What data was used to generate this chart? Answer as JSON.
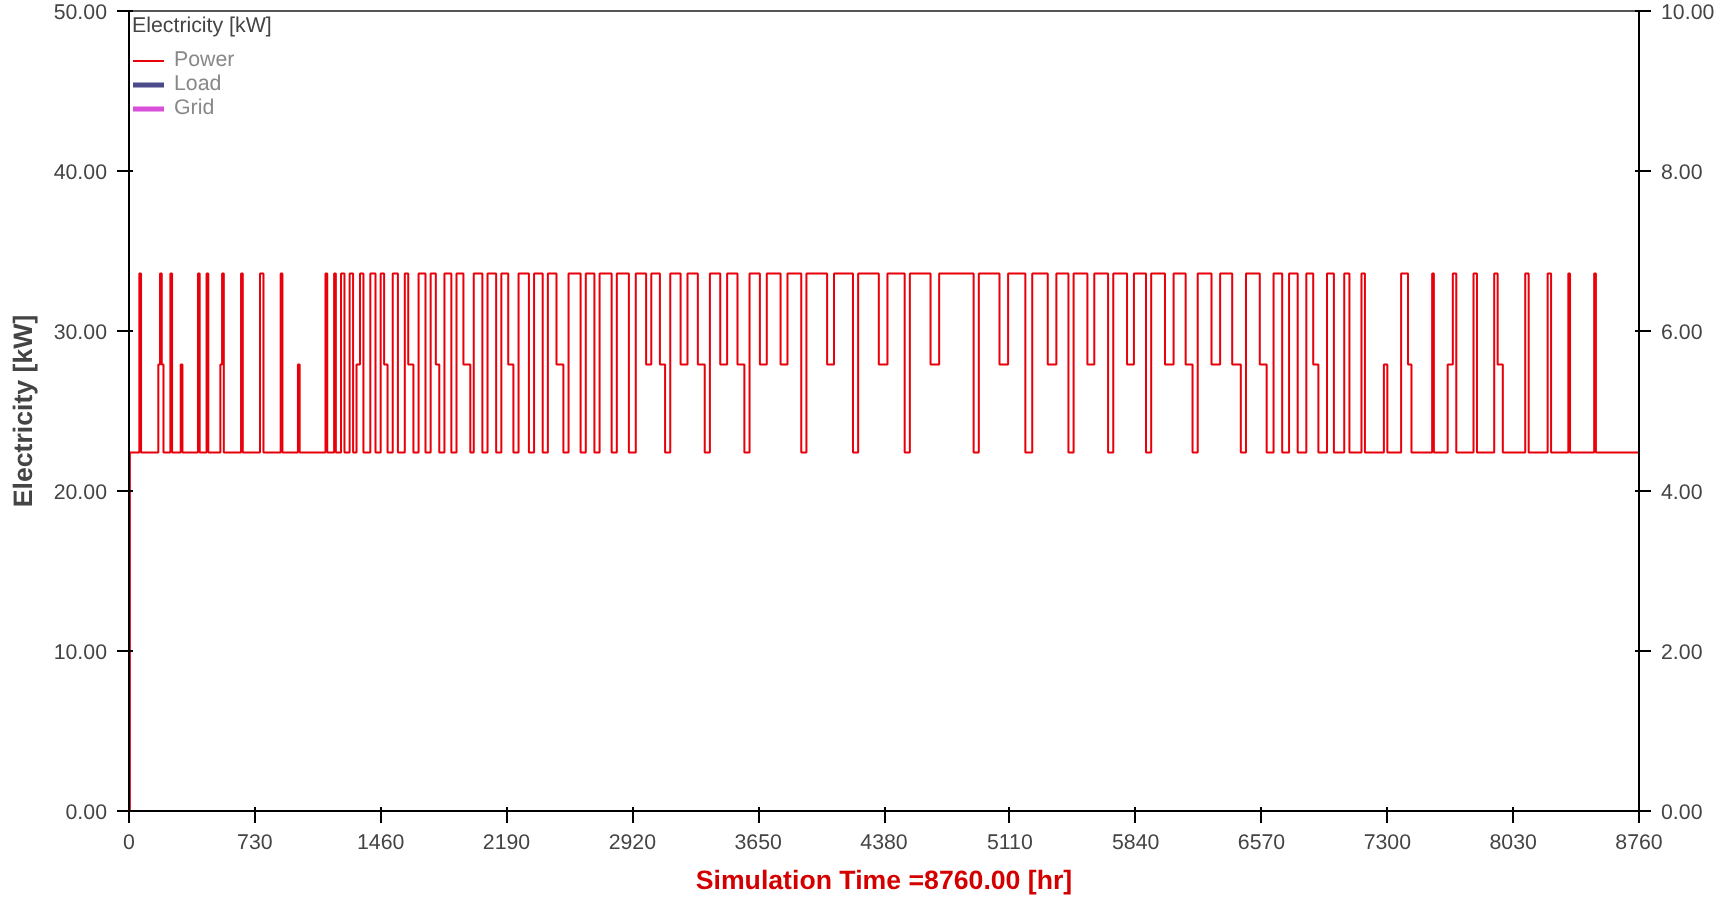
{
  "chart_data": {
    "type": "step",
    "legend_title": "Electricity [kW]",
    "xlabel": "Simulation Time =8760.00 [hr]",
    "ylabel": "Electricity [kW]",
    "legend": "top left",
    "x": [
      0,
      5,
      60,
      70,
      170,
      180,
      190,
      200,
      240,
      250,
      300,
      310,
      400,
      410,
      450,
      460,
      530,
      540,
      550,
      650,
      660,
      760,
      780,
      880,
      890,
      980,
      990,
      1140,
      1150,
      1190,
      1200,
      1230,
      1250,
      1280,
      1300,
      1320,
      1340,
      1360,
      1400,
      1430,
      1460,
      1480,
      1500,
      1530,
      1560,
      1600,
      1620,
      1650,
      1680,
      1720,
      1750,
      1780,
      1800,
      1830,
      1870,
      1900,
      1940,
      1980,
      2000,
      2050,
      2080,
      2130,
      2160,
      2200,
      2230,
      2260,
      2320,
      2350,
      2400,
      2430,
      2480,
      2520,
      2550,
      2620,
      2650,
      2700,
      2730,
      2800,
      2830,
      2900,
      2940,
      3000,
      3030,
      3080,
      3110,
      3140,
      3200,
      3240,
      3300,
      3340,
      3370,
      3430,
      3470,
      3530,
      3570,
      3600,
      3660,
      3700,
      3780,
      3820,
      3900,
      3930,
      4050,
      4090,
      4200,
      4230,
      4350,
      4400,
      4500,
      4530,
      4650,
      4700,
      4900,
      4930,
      5050,
      5100,
      5200,
      5240,
      5330,
      5380,
      5450,
      5480,
      5560,
      5600,
      5680,
      5710,
      5790,
      5830,
      5900,
      5930,
      6010,
      6060,
      6130,
      6170,
      6200,
      6280,
      6330,
      6400,
      6450,
      6480,
      6560,
      6600,
      6640,
      6690,
      6730,
      6780,
      6830,
      6870,
      6900,
      6950,
      6990,
      7050,
      7080,
      7150,
      7170,
      7280,
      7300,
      7380,
      7420,
      7440,
      7560,
      7570,
      7650,
      7680,
      7700,
      7800,
      7820,
      7920,
      7940,
      7970,
      8100,
      8120,
      8230,
      8250,
      8350,
      8360,
      8500,
      8510,
      8760
    ],
    "series": [
      {
        "name": "Power",
        "color": "#e8000b",
        "values": [
          0,
          22.4,
          33.6,
          22.4,
          27.9,
          33.6,
          27.9,
          22.4,
          33.6,
          22.4,
          27.9,
          22.4,
          33.6,
          22.4,
          33.6,
          22.4,
          27.9,
          33.6,
          22.4,
          33.6,
          22.4,
          33.6,
          22.4,
          33.6,
          22.4,
          27.9,
          22.4,
          33.6,
          22.4,
          33.6,
          22.4,
          33.6,
          22.4,
          33.6,
          22.4,
          27.9,
          33.6,
          22.4,
          33.6,
          22.4,
          33.6,
          27.9,
          22.4,
          33.6,
          22.4,
          33.6,
          27.9,
          22.4,
          33.6,
          22.4,
          33.6,
          27.9,
          22.4,
          33.6,
          22.4,
          33.6,
          27.9,
          22.4,
          33.6,
          22.4,
          33.6,
          22.4,
          33.6,
          27.9,
          22.4,
          33.6,
          22.4,
          33.6,
          22.4,
          33.6,
          27.9,
          22.4,
          33.6,
          22.4,
          33.6,
          22.4,
          33.6,
          22.4,
          33.6,
          22.4,
          33.6,
          27.9,
          33.6,
          27.9,
          22.4,
          33.6,
          27.9,
          33.6,
          27.9,
          22.4,
          33.6,
          27.9,
          33.6,
          27.9,
          22.4,
          33.6,
          27.9,
          33.6,
          27.9,
          33.6,
          22.4,
          33.6,
          27.9,
          33.6,
          22.4,
          33.6,
          27.9,
          33.6,
          22.4,
          33.6,
          27.9,
          33.6,
          22.4,
          33.6,
          27.9,
          33.6,
          22.4,
          33.6,
          27.9,
          33.6,
          22.4,
          33.6,
          27.9,
          33.6,
          22.4,
          33.6,
          27.9,
          33.6,
          22.4,
          33.6,
          27.9,
          33.6,
          27.9,
          22.4,
          33.6,
          27.9,
          33.6,
          27.9,
          22.4,
          33.6,
          27.9,
          22.4,
          33.6,
          22.4,
          33.6,
          22.4,
          33.6,
          27.9,
          22.4,
          33.6,
          22.4,
          33.6,
          22.4,
          33.6,
          22.4,
          27.9,
          22.4,
          33.6,
          27.9,
          22.4,
          33.6,
          22.4,
          27.9,
          33.6,
          22.4,
          33.6,
          22.4,
          33.6,
          27.9,
          22.4,
          33.6,
          22.4,
          33.6,
          22.4,
          33.6,
          22.4,
          33.6,
          22.4,
          22.4
        ]
      },
      {
        "name": "Load",
        "color": "#4b4b8c",
        "values": [
          null,
          null,
          null,
          null,
          null,
          null,
          null,
          null,
          null,
          null,
          null,
          null,
          null,
          null,
          null,
          null,
          null,
          null,
          null,
          null,
          null,
          null,
          null,
          null,
          null,
          null,
          null,
          null,
          null,
          null,
          null,
          null,
          null,
          null,
          null,
          null,
          null,
          null,
          null,
          null,
          null,
          null,
          null,
          null,
          null,
          null,
          null,
          null,
          null,
          null,
          null,
          null,
          null,
          null,
          null,
          null,
          null,
          null,
          null,
          null,
          null,
          null,
          null,
          null,
          null,
          null,
          null,
          null,
          null,
          null,
          null,
          null,
          null,
          null,
          null,
          null,
          null,
          null,
          null,
          null,
          null,
          null,
          null,
          null,
          null,
          null,
          null,
          null,
          null,
          null,
          null,
          null,
          null,
          null,
          null,
          null,
          null,
          null,
          null,
          null,
          null,
          null,
          null,
          null,
          null,
          null,
          null,
          null,
          null,
          null,
          null,
          null,
          null,
          null,
          null,
          null,
          null,
          null,
          null,
          null,
          null,
          null,
          null,
          null,
          null,
          null,
          null,
          null,
          null,
          null,
          null,
          null,
          null,
          null,
          null,
          null,
          null,
          null,
          null,
          null,
          null,
          null,
          null,
          null,
          null,
          null,
          null,
          null,
          null,
          null,
          null,
          null,
          null,
          null,
          null,
          null,
          null,
          null,
          null,
          null,
          null,
          null,
          null,
          null,
          null,
          null,
          null,
          null,
          null,
          null,
          null,
          null,
          null,
          null,
          null,
          null,
          null,
          null,
          null
        ]
      },
      {
        "name": "Grid",
        "color": "#d94fd9",
        "values": [
          null,
          null,
          null,
          null,
          null,
          null,
          null,
          null,
          null,
          null,
          null,
          null,
          null,
          null,
          null,
          null,
          null,
          null,
          null,
          null,
          null,
          null,
          null,
          null,
          null,
          null,
          null,
          null,
          null,
          null,
          null,
          null,
          null,
          null,
          null,
          null,
          null,
          null,
          null,
          null,
          null,
          null,
          null,
          null,
          null,
          null,
          null,
          null,
          null,
          null,
          null,
          null,
          null,
          null,
          null,
          null,
          null,
          null,
          null,
          null,
          null,
          null,
          null,
          null,
          null,
          null,
          null,
          null,
          null,
          null,
          null,
          null,
          null,
          null,
          null,
          null,
          null,
          null,
          null,
          null,
          null,
          null,
          null,
          null,
          null,
          null,
          null,
          null,
          null,
          null,
          null,
          null,
          null,
          null,
          null,
          null,
          null,
          null,
          null,
          null,
          null,
          null,
          null,
          null,
          null,
          null,
          null,
          null,
          null,
          null,
          null,
          null,
          null,
          null,
          null,
          null,
          null,
          null,
          null,
          null,
          null,
          null,
          null,
          null,
          null,
          null,
          null,
          null,
          null,
          null,
          null,
          null,
          null,
          null,
          null,
          null,
          null,
          null,
          null,
          null,
          null,
          null,
          null,
          null,
          null,
          null,
          null,
          null,
          null,
          null,
          null,
          null,
          null,
          null,
          null,
          null,
          null,
          null,
          null,
          null,
          null,
          null,
          null,
          null,
          null,
          null,
          null,
          null,
          null,
          null,
          null,
          null,
          null,
          null,
          null,
          null,
          null,
          null,
          null
        ]
      }
    ],
    "xlim": [
      0,
      8760
    ],
    "xticks": [
      0,
      730,
      1460,
      2190,
      2920,
      3650,
      4380,
      5110,
      5840,
      6570,
      7300,
      8030,
      8760
    ],
    "ylim": [
      0,
      50
    ],
    "yticks": [
      {
        "value": 0,
        "label": "0.00"
      },
      {
        "value": 10,
        "label": "10.00"
      },
      {
        "value": 20,
        "label": "20.00"
      },
      {
        "value": 30,
        "label": "30.00"
      },
      {
        "value": 40,
        "label": "40.00"
      },
      {
        "value": 50,
        "label": "50.00"
      }
    ],
    "y2lim": [
      0,
      10
    ],
    "y2ticks": [
      {
        "value": 0,
        "label": "0.00"
      },
      {
        "value": 2,
        "label": "2.00"
      },
      {
        "value": 4,
        "label": "4.00"
      },
      {
        "value": 6,
        "label": "6.00"
      },
      {
        "value": 8,
        "label": "8.00"
      },
      {
        "value": 10,
        "label": "10.00"
      }
    ],
    "grid": false
  }
}
